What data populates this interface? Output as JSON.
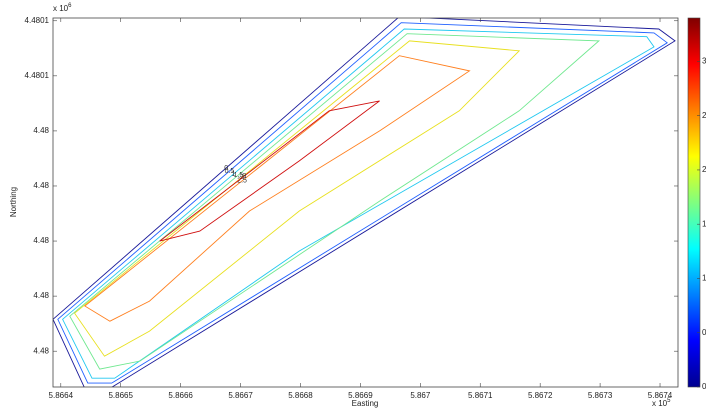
{
  "chart_data": {
    "type": "contour",
    "x_label": "Easting",
    "y_label": "Northing",
    "x_multiplier": {
      "base": "x 10",
      "power": "5"
    },
    "y_multiplier": {
      "base": "x 10",
      "power": "6"
    },
    "xlim": [
      5.866387,
      5.86743
    ],
    "ylim": [
      4.479967,
      4.480101
    ],
    "xticks": [
      5.8664,
      5.8665,
      5.8666,
      5.8667,
      5.8668,
      5.8669,
      5.867,
      5.8671,
      5.8672,
      5.8673,
      5.8674
    ],
    "yticks": [
      {
        "value": 4.47998,
        "label": "4.48"
      },
      {
        "value": 4.48,
        "label": "4.48"
      },
      {
        "value": 4.48002,
        "label": "4.48"
      },
      {
        "value": 4.48004,
        "label": "4.48"
      },
      {
        "value": 4.48006,
        "label": "4.48"
      },
      {
        "value": 4.48008,
        "label": "4.4801"
      },
      {
        "value": 4.4801,
        "label": "4.4801"
      }
    ],
    "clim": [
      0,
      3.4
    ],
    "cticks": [
      0,
      {
        "value": 0.5,
        "label": "0."
      },
      1,
      {
        "value": 1.5,
        "label": "1."
      },
      2,
      {
        "value": 2.5,
        "label": "2."
      },
      3
    ],
    "contours": [
      {
        "level": 0,
        "color": "#1a1a9a",
        "x": [
          5.866387,
          5.866965,
          5.867398,
          5.867425,
          5.866482,
          5.86644
        ],
        "y": [
          4.4799916,
          4.4801015,
          4.480097,
          4.4800927,
          4.4799665,
          4.4799665
        ]
      },
      {
        "level": 0.5,
        "color": "#2060ff",
        "x": [
          5.866395,
          5.866968,
          5.86739,
          5.867412,
          5.866485,
          5.866445
        ],
        "y": [
          4.4799916,
          4.4800993,
          4.4800956,
          4.480092,
          4.4799684,
          4.4799684
        ]
      },
      {
        "level": 1,
        "color": "#20c8f0",
        "x": [
          5.866403,
          5.866973,
          5.867378,
          5.86739,
          5.866798,
          5.86649,
          5.866452
        ],
        "y": [
          4.4799916,
          4.480097,
          4.4800942,
          4.4800905,
          4.4800164,
          4.4799702,
          4.4799702
        ]
      },
      {
        "level": 1.5,
        "color": "#70e890",
        "x": [
          5.866415,
          5.866978,
          5.867298,
          5.867165,
          5.866932,
          5.866532,
          5.866465
        ],
        "y": [
          4.4799927,
          4.4800953,
          4.4800927,
          4.4800673,
          4.4800345,
          4.4799764,
          4.4799735
        ]
      },
      {
        "level": 2,
        "color": "#e8e020",
        "x": [
          5.866423,
          5.866982,
          5.867165,
          5.867065,
          5.866798,
          5.866548,
          5.866473
        ],
        "y": [
          4.4799938,
          4.4800927,
          4.4800891,
          4.4800673,
          4.4800309,
          4.4799873,
          4.4799782
        ]
      },
      {
        "level": 2.5,
        "color": "#ff8020",
        "x": [
          5.86644,
          5.866965,
          5.867082,
          5.866932,
          5.866715,
          5.866548,
          5.866482
        ],
        "y": [
          4.4799964,
          4.4800873,
          4.4800818,
          4.48006,
          4.4800309,
          4.4799982,
          4.4799909
        ]
      },
      {
        "level": 3,
        "color": "#d01010",
        "x": [
          5.866565,
          5.866848,
          5.866932,
          5.866798,
          5.866632
        ],
        "y": [
          4.48002,
          4.4800673,
          4.4800709,
          4.4800491,
          4.4800236
        ]
      }
    ]
  }
}
